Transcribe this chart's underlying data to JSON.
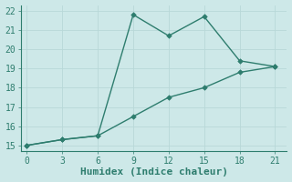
{
  "line1_x": [
    0,
    3,
    6,
    9,
    12,
    15,
    18,
    21
  ],
  "line1_y": [
    15.0,
    15.3,
    15.5,
    21.8,
    20.7,
    21.7,
    19.4,
    19.1
  ],
  "line2_x": [
    0,
    3,
    6,
    9,
    12,
    15,
    18,
    21
  ],
  "line2_y": [
    15.0,
    15.3,
    15.5,
    16.5,
    17.5,
    18.0,
    18.8,
    19.1
  ],
  "color": "#2e7d6e",
  "xlabel": "Humidex (Indice chaleur)",
  "xlim": [
    -0.5,
    22
  ],
  "ylim": [
    14.7,
    22.3
  ],
  "xticks": [
    0,
    3,
    6,
    9,
    12,
    15,
    18,
    21
  ],
  "yticks": [
    15,
    16,
    17,
    18,
    19,
    20,
    21,
    22
  ],
  "bg_color": "#cde8e8",
  "grid_color": "#b8d8d8"
}
